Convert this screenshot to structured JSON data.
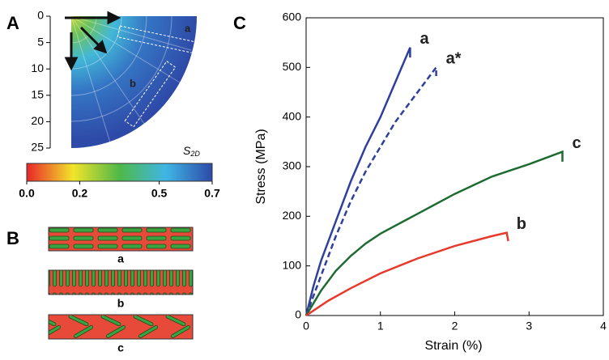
{
  "chart_data": [
    {
      "type": "polar-map",
      "label": "A",
      "ylim": [
        0,
        25
      ],
      "yticks": [
        0,
        5,
        10,
        15,
        20,
        25
      ],
      "region_labels": [
        "a",
        "b"
      ],
      "colorbar": {
        "symbol": "S",
        "subscript": "2D",
        "clim": [
          0,
          0.7
        ],
        "ticks": [
          {
            "value": 0,
            "label": "0.0"
          },
          0.2,
          0.5,
          0.7
        ],
        "colors": [
          "#e8262a",
          "#f2e52a",
          "#4fb848",
          "#3fb6e6",
          "#2e4aa8"
        ]
      }
    },
    {
      "type": "line",
      "label": "C",
      "xlabel": "Strain (%)",
      "ylabel": "Stress (MPa)",
      "xlim": [
        0,
        4
      ],
      "xticks": [
        0,
        1,
        2,
        3,
        4
      ],
      "ylim": [
        0,
        600
      ],
      "yticks": [
        0,
        100,
        200,
        300,
        400,
        500,
        600
      ],
      "series": [
        {
          "name": "a",
          "color": "#2e3f9e",
          "dashed": false,
          "x": [
            0,
            0.1,
            0.2,
            0.4,
            0.6,
            0.8,
            1.0,
            1.2,
            1.4,
            1.4
          ],
          "values": [
            0,
            60,
            110,
            190,
            270,
            340,
            400,
            470,
            540,
            520
          ]
        },
        {
          "name": "a*",
          "color": "#2e3f9e",
          "dashed": true,
          "x": [
            0,
            0.2,
            0.4,
            0.6,
            0.8,
            1.0,
            1.2,
            1.4,
            1.6,
            1.75,
            1.75
          ],
          "values": [
            0,
            80,
            160,
            230,
            290,
            340,
            390,
            430,
            470,
            500,
            480
          ]
        },
        {
          "name": "c",
          "color": "#1e6b32",
          "dashed": false,
          "x": [
            0,
            0.2,
            0.4,
            0.6,
            0.8,
            1.0,
            1.5,
            2.0,
            2.5,
            3.0,
            3.45,
            3.45
          ],
          "values": [
            0,
            50,
            90,
            120,
            145,
            165,
            205,
            245,
            280,
            305,
            330,
            310
          ]
        },
        {
          "name": "b",
          "color": "#e8392a",
          "dashed": false,
          "x": [
            0,
            0.3,
            0.6,
            1.0,
            1.5,
            2.0,
            2.5,
            2.7,
            2.72
          ],
          "values": [
            0,
            30,
            55,
            85,
            115,
            140,
            160,
            167,
            150
          ]
        }
      ]
    }
  ],
  "schematic": {
    "label": "B",
    "items": [
      "a",
      "b",
      "c"
    ]
  }
}
